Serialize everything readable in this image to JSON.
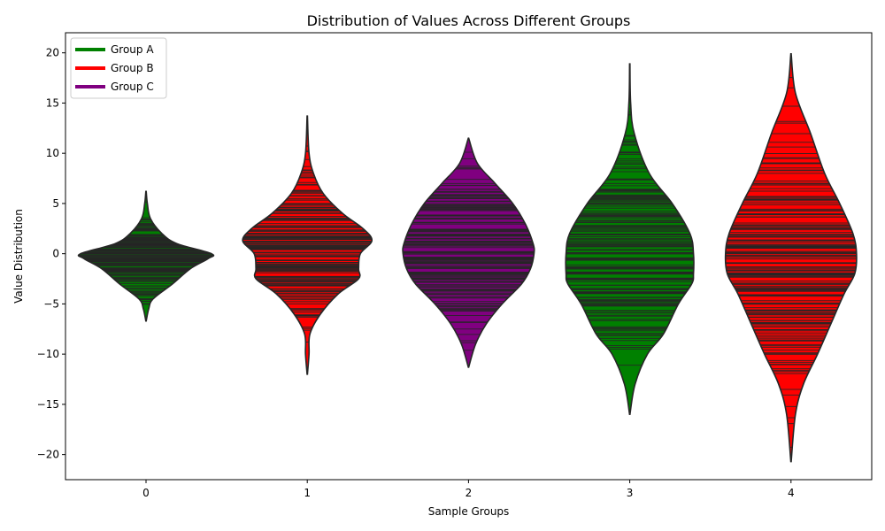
{
  "chart_data": {
    "type": "violin",
    "title": "Distribution of Values Across Different Groups",
    "xlabel": "Sample Groups",
    "ylabel": "Value Distribution",
    "ylim": [
      -22.5,
      22.0
    ],
    "yticks": [
      20,
      15,
      10,
      5,
      0,
      -5,
      -10,
      -15,
      -20
    ],
    "ytick_labels": [
      "20",
      "15",
      "10",
      "5",
      "0",
      "−5",
      "−10",
      "−15",
      "−20"
    ],
    "categories": [
      "0",
      "1",
      "2",
      "3",
      "4"
    ],
    "grid": false,
    "legend_position": "upper-left",
    "legend": [
      {
        "label": "Group A",
        "color": "#008000"
      },
      {
        "label": "Group B",
        "color": "#ff0000"
      },
      {
        "label": "Group C",
        "color": "#800080"
      }
    ],
    "violins": [
      {
        "category": "0",
        "group": "Group A",
        "color": "#008000",
        "min": -6.7,
        "max": 6.2,
        "profile": [
          [
            6.2,
            0.2
          ],
          [
            5.0,
            1.5
          ],
          [
            3.5,
            5
          ],
          [
            2.0,
            18
          ],
          [
            1.0,
            35
          ],
          [
            0,
            74
          ],
          [
            -0.5,
            70
          ],
          [
            -1.5,
            50
          ],
          [
            -3.0,
            30
          ],
          [
            -4.5,
            8
          ],
          [
            -5.5,
            3
          ],
          [
            -6.7,
            0.2
          ]
        ]
      },
      {
        "category": "1",
        "group": "Group B",
        "color": "#ff0000",
        "min": -12.0,
        "max": 13.7,
        "profile": [
          [
            13.7,
            0.2
          ],
          [
            10.0,
            2
          ],
          [
            8.0,
            7
          ],
          [
            6.0,
            18
          ],
          [
            4.0,
            40
          ],
          [
            2.5,
            63
          ],
          [
            1.3,
            73
          ],
          [
            0,
            60
          ],
          [
            -1.5,
            58
          ],
          [
            -2.5,
            58
          ],
          [
            -4.0,
            35
          ],
          [
            -6.0,
            15
          ],
          [
            -8.0,
            3
          ],
          [
            -10.0,
            2
          ],
          [
            -12.0,
            0.2
          ]
        ]
      },
      {
        "category": "2",
        "group": "Group C",
        "color": "#800080",
        "min": -11.3,
        "max": 11.5,
        "profile": [
          [
            11.5,
            0.2
          ],
          [
            9.0,
            10
          ],
          [
            7.0,
            30
          ],
          [
            5.0,
            50
          ],
          [
            3.0,
            64
          ],
          [
            1.0,
            73
          ],
          [
            0,
            74
          ],
          [
            -1.5,
            70
          ],
          [
            -3.0,
            60
          ],
          [
            -5.0,
            38
          ],
          [
            -7.0,
            20
          ],
          [
            -9.0,
            8
          ],
          [
            -11.3,
            0.2
          ]
        ]
      },
      {
        "category": "3",
        "group": "Group A",
        "color": "#008000",
        "min": -16.0,
        "max": 18.9,
        "profile": [
          [
            18.9,
            0.2
          ],
          [
            15.0,
            1
          ],
          [
            12.0,
            5
          ],
          [
            8.0,
            22
          ],
          [
            5.0,
            48
          ],
          [
            2.0,
            68
          ],
          [
            0,
            72
          ],
          [
            -2.0,
            72
          ],
          [
            -3.0,
            70
          ],
          [
            -5.0,
            55
          ],
          [
            -8.0,
            38
          ],
          [
            -10.0,
            20
          ],
          [
            -13.0,
            6
          ],
          [
            -16.0,
            0.2
          ]
        ]
      },
      {
        "category": "4",
        "group": "Group B",
        "color": "#ff0000",
        "min": -20.7,
        "max": 19.9,
        "profile": [
          [
            19.9,
            0.2
          ],
          [
            16.0,
            5
          ],
          [
            12.0,
            22
          ],
          [
            8.0,
            38
          ],
          [
            5.0,
            55
          ],
          [
            2.0,
            70
          ],
          [
            0,
            74
          ],
          [
            -2.0,
            72
          ],
          [
            -4.0,
            60
          ],
          [
            -7.0,
            45
          ],
          [
            -10.0,
            30
          ],
          [
            -13.0,
            14
          ],
          [
            -16.0,
            5
          ],
          [
            -20.7,
            0.2
          ]
        ]
      }
    ]
  }
}
